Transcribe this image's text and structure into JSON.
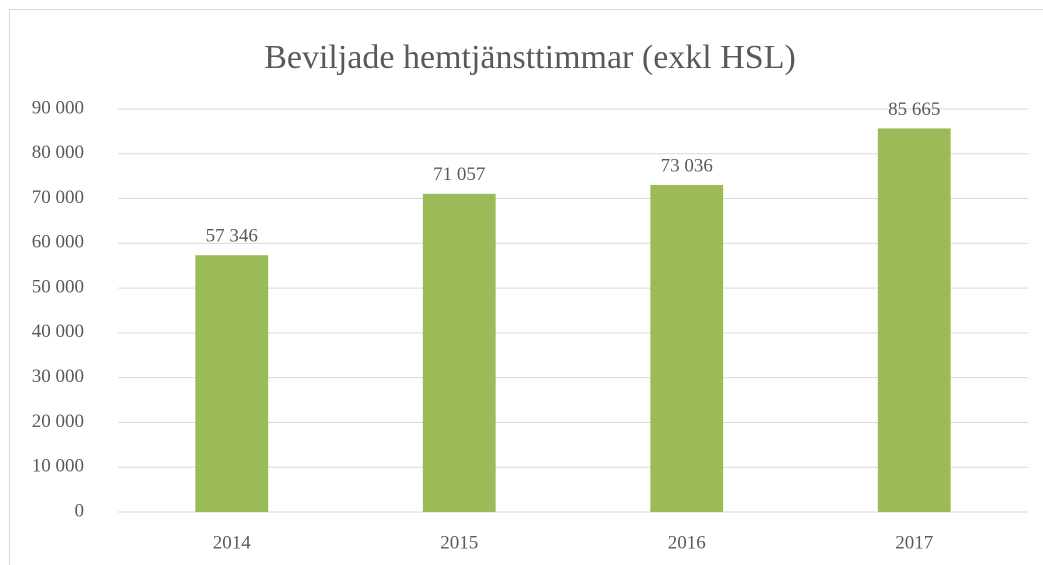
{
  "chart_data": {
    "type": "bar",
    "title": "Beviljade hemtjänsttimmar (exkl HSL)",
    "categories": [
      "2014",
      "2015",
      "2016",
      "2017"
    ],
    "values": [
      57346,
      71057,
      73036,
      85665
    ],
    "value_labels": [
      "57 346",
      "71 057",
      "73 036",
      "85 665"
    ],
    "color": "#9bbb59",
    "ylim": [
      0,
      90000
    ],
    "yticks": [
      0,
      {
        "value": 10000,
        "label": "10 000"
      },
      {
        "value": 20000,
        "label": "20 000"
      },
      {
        "value": 30000,
        "label": "30 000"
      },
      {
        "value": 40000,
        "label": "40 000"
      },
      {
        "value": 50000,
        "label": "50 000"
      },
      {
        "value": 60000,
        "label": "60 000"
      },
      {
        "value": 70000,
        "label": "70 000"
      },
      {
        "value": 80000,
        "label": "80 000"
      },
      {
        "value": 90000,
        "label": "90 000"
      }
    ],
    "grid": true
  }
}
